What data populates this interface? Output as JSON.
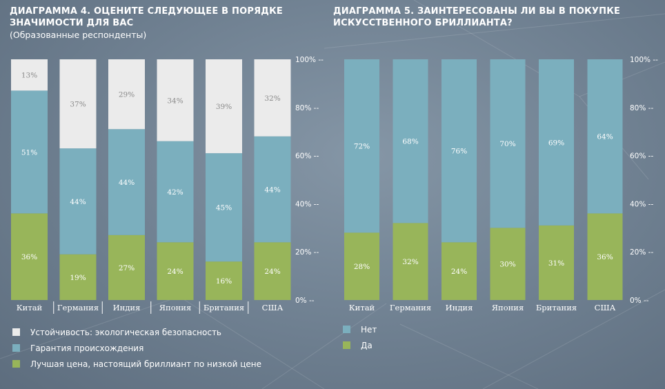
{
  "colors": {
    "green": "#98b55a",
    "blue": "#7bafbe",
    "light": "#ebebeb",
    "tick": "#ffffff",
    "value_label_light": "#8a8a8a"
  },
  "chart4": {
    "title": "ДИАГРАММА 4. ОЦЕНИТЕ СЛЕДУЮЩЕЕ В ПОРЯДКЕ ЗНАЧИМОСТИ ДЛЯ ВАС",
    "subtitle": "(Образованные респонденты)",
    "legend": [
      {
        "label": "Устойчивость: экологическая безопасность",
        "color": "#ebebeb"
      },
      {
        "label": "Гарантия происхождения",
        "color": "#7bafbe"
      },
      {
        "label": "Лучшая цена, настоящий бриллиант по низкой цене",
        "color": "#98b55a"
      }
    ]
  },
  "chart5": {
    "title": "ДИАГРАММА 5. ЗАИНТЕРЕСОВАНЫ ЛИ ВЫ В ПОКУПКЕ ИСКУССТВЕННОГО БРИЛЛИАНТА?",
    "legend": [
      {
        "label": "Нет",
        "color": "#7bafbe"
      },
      {
        "label": "Да",
        "color": "#98b55a"
      }
    ]
  },
  "chart_data": [
    {
      "type": "bar",
      "stacked": true,
      "title": "ДИАГРАММА 4. ОЦЕНИТЕ СЛЕДУЮЩЕЕ В ПОРЯДКЕ ЗНАЧИМОСТИ ДЛЯ ВАС",
      "subtitle": "(Образованные респонденты)",
      "categories": [
        "Китай",
        "Германия",
        "Индия",
        "Япония",
        "Британия",
        "США"
      ],
      "series": [
        {
          "name": "Лучшая цена, настоящий бриллиант по низкой цене",
          "values": [
            36,
            19,
            27,
            24,
            16,
            24
          ],
          "labels": [
            "36%",
            "19%",
            "27%",
            "24%",
            "16%",
            "24%"
          ],
          "color": "#98b55a"
        },
        {
          "name": "Гарантия происхождения",
          "values": [
            51,
            44,
            44,
            42,
            45,
            44
          ],
          "labels": [
            "51%",
            "44%",
            "44%",
            "42%",
            "45%",
            "44%"
          ],
          "color": "#7bafbe"
        },
        {
          "name": "Устойчивость: экологическая безопасность",
          "values": [
            13,
            37,
            29,
            34,
            39,
            32
          ],
          "labels": [
            "13%",
            "37%",
            "29%",
            "34%",
            "39%",
            "32%"
          ],
          "color": "#ebebeb"
        }
      ],
      "yticks": [
        "0% --",
        "20% --",
        "40% --",
        "60% --",
        "80% --",
        "100% --"
      ],
      "ylim": [
        0,
        100
      ],
      "grid": false,
      "legend_position": "bottom"
    },
    {
      "type": "bar",
      "stacked": true,
      "title": "ДИАГРАММА 5. ЗАИНТЕРЕСОВАНЫ ЛИ ВЫ В ПОКУПКЕ ИСКУССТВЕННОГО БРИЛЛИАНТА?",
      "categories": [
        "Китай",
        "Германия",
        "Индия",
        "Япония",
        "Британия",
        "США"
      ],
      "series": [
        {
          "name": "Да",
          "values": [
            28,
            32,
            24,
            30,
            31,
            36
          ],
          "labels": [
            "28%",
            "32%",
            "24%",
            "30%",
            "31%",
            "36%"
          ],
          "color": "#98b55a"
        },
        {
          "name": "Нет",
          "values": [
            72,
            68,
            76,
            70,
            69,
            64
          ],
          "labels": [
            "72%",
            "68%",
            "76%",
            "70%",
            "69%",
            "64%"
          ],
          "color": "#7bafbe"
        }
      ],
      "yticks": [
        "0% --",
        "20% --",
        "40% --",
        "60% --",
        "80% --",
        "100% --"
      ],
      "ylim": [
        0,
        100
      ],
      "grid": false,
      "legend_position": "bottom"
    }
  ]
}
